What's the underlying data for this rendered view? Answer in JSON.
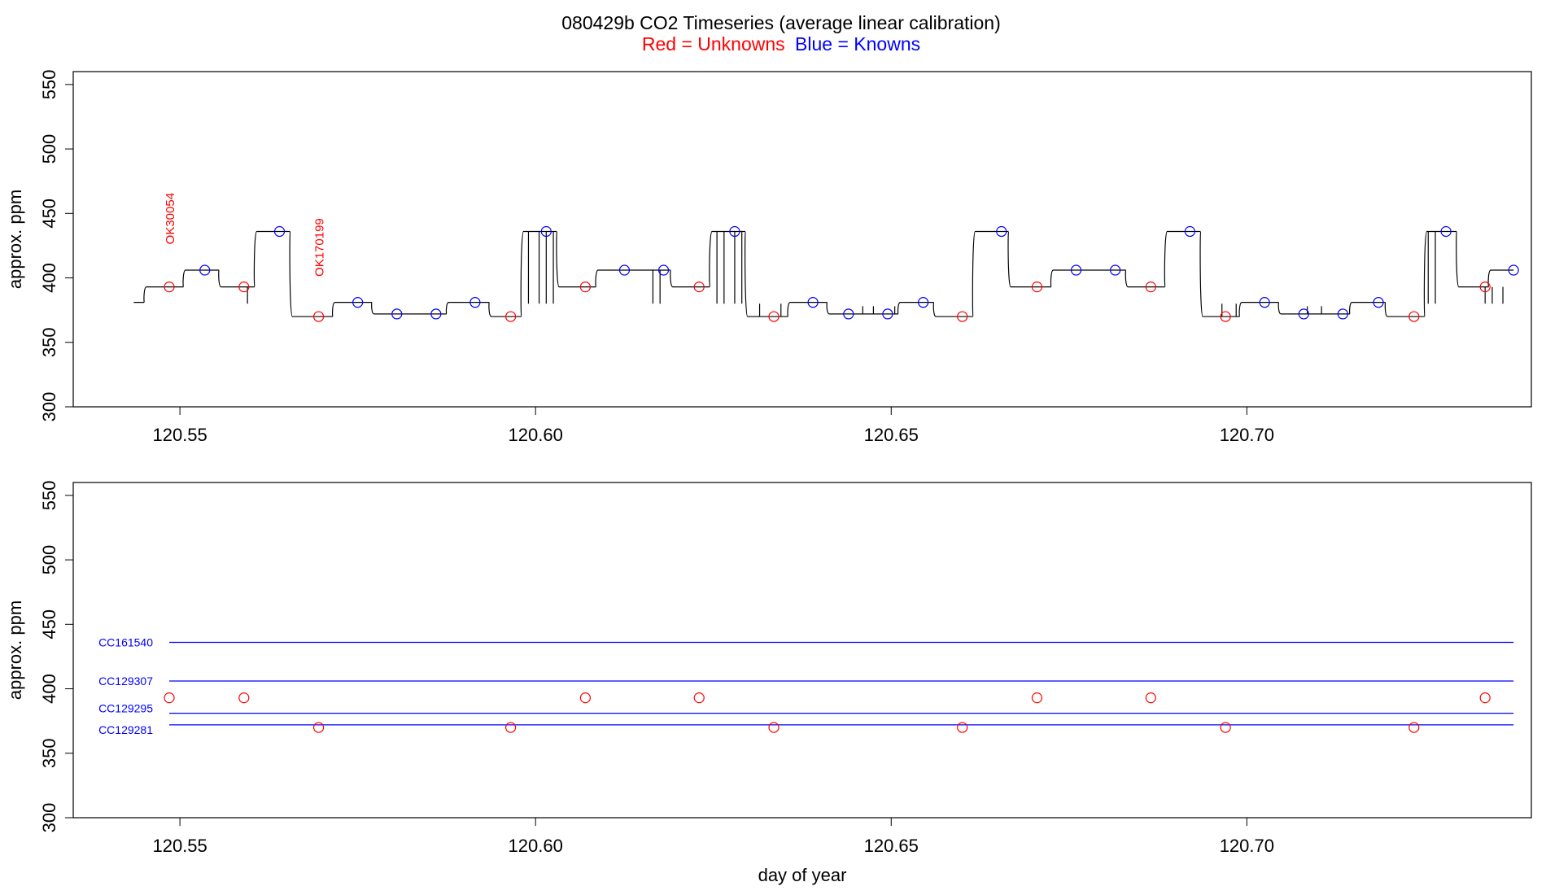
{
  "title": {
    "main": "080429b   CO2 Timeseries (average linear calibration)",
    "legend_red": "Red = Unknowns",
    "legend_blue": "Blue = Knowns"
  },
  "colors": {
    "unknown": "#ff0000",
    "known": "#0000ff",
    "trace": "#000000",
    "axis": "#000000"
  },
  "chart_data": [
    {
      "type": "line",
      "ylabel": "approx. ppm",
      "xlabel": "",
      "xlim": [
        120.535,
        120.74
      ],
      "ylim": [
        300,
        560
      ],
      "x_ticks": [
        "120.55",
        "120.60",
        "120.65",
        "120.70"
      ],
      "y_ticks": [
        "300",
        "350",
        "400",
        "450",
        "500",
        "550"
      ],
      "trace_levels": [
        {
          "x0": 120.5435,
          "x1": 120.545,
          "y": 381
        },
        {
          "x0": 120.545,
          "x1": 120.5505,
          "y": 393
        },
        {
          "x0": 120.5505,
          "x1": 120.5555,
          "y": 406
        },
        {
          "x0": 120.5555,
          "x1": 120.5605,
          "y": 393
        },
        {
          "x0": 120.5605,
          "x1": 120.5655,
          "y": 436
        },
        {
          "x0": 120.5655,
          "x1": 120.5715,
          "y": 370
        },
        {
          "x0": 120.5715,
          "x1": 120.577,
          "y": 381
        },
        {
          "x0": 120.577,
          "x1": 120.5875,
          "y": 372
        },
        {
          "x0": 120.5875,
          "x1": 120.5935,
          "y": 381
        },
        {
          "x0": 120.5935,
          "x1": 120.598,
          "y": 370
        },
        {
          "x0": 120.598,
          "x1": 120.603,
          "y": 436
        },
        {
          "x0": 120.603,
          "x1": 120.6085,
          "y": 393
        },
        {
          "x0": 120.6085,
          "x1": 120.619,
          "y": 406
        },
        {
          "x0": 120.619,
          "x1": 120.6245,
          "y": 393
        },
        {
          "x0": 120.6245,
          "x1": 120.6295,
          "y": 436
        },
        {
          "x0": 120.6295,
          "x1": 120.6355,
          "y": 370
        },
        {
          "x0": 120.6355,
          "x1": 120.641,
          "y": 381
        },
        {
          "x0": 120.641,
          "x1": 120.651,
          "y": 372
        },
        {
          "x0": 120.651,
          "x1": 120.656,
          "y": 381
        },
        {
          "x0": 120.656,
          "x1": 120.6615,
          "y": 370
        },
        {
          "x0": 120.6615,
          "x1": 120.6665,
          "y": 436
        },
        {
          "x0": 120.6665,
          "x1": 120.6725,
          "y": 393
        },
        {
          "x0": 120.6725,
          "x1": 120.683,
          "y": 406
        },
        {
          "x0": 120.683,
          "x1": 120.6885,
          "y": 393
        },
        {
          "x0": 120.6885,
          "x1": 120.6935,
          "y": 436
        },
        {
          "x0": 120.6935,
          "x1": 120.699,
          "y": 370
        },
        {
          "x0": 120.699,
          "x1": 120.7045,
          "y": 381
        },
        {
          "x0": 120.7045,
          "x1": 120.7145,
          "y": 372
        },
        {
          "x0": 120.7145,
          "x1": 120.7195,
          "y": 381
        },
        {
          "x0": 120.7195,
          "x1": 120.725,
          "y": 370
        },
        {
          "x0": 120.725,
          "x1": 120.7295,
          "y": 436
        },
        {
          "x0": 120.7295,
          "x1": 120.734,
          "y": 393
        },
        {
          "x0": 120.734,
          "x1": 120.7375,
          "y": 406
        }
      ],
      "trace_spikes": [
        {
          "x": 120.5595,
          "y_from": 393,
          "y_to": 380
        },
        {
          "x": 120.599,
          "y_from": 436,
          "y_to": 380
        },
        {
          "x": 120.6005,
          "y_from": 436,
          "y_to": 380
        },
        {
          "x": 120.6015,
          "y_from": 436,
          "y_to": 380
        },
        {
          "x": 120.6025,
          "y_from": 436,
          "y_to": 380
        },
        {
          "x": 120.6165,
          "y_from": 406,
          "y_to": 380
        },
        {
          "x": 120.6175,
          "y_from": 406,
          "y_to": 380
        },
        {
          "x": 120.6255,
          "y_from": 436,
          "y_to": 380
        },
        {
          "x": 120.6265,
          "y_from": 436,
          "y_to": 380
        },
        {
          "x": 120.628,
          "y_from": 436,
          "y_to": 380
        },
        {
          "x": 120.629,
          "y_from": 436,
          "y_to": 380
        },
        {
          "x": 120.6315,
          "y_from": 370,
          "y_to": 380
        },
        {
          "x": 120.6345,
          "y_from": 370,
          "y_to": 380
        },
        {
          "x": 120.646,
          "y_from": 372,
          "y_to": 378
        },
        {
          "x": 120.6475,
          "y_from": 372,
          "y_to": 378
        },
        {
          "x": 120.6505,
          "y_from": 372,
          "y_to": 378
        },
        {
          "x": 120.6965,
          "y_from": 370,
          "y_to": 380
        },
        {
          "x": 120.6985,
          "y_from": 370,
          "y_to": 380
        },
        {
          "x": 120.7085,
          "y_from": 372,
          "y_to": 378
        },
        {
          "x": 120.7105,
          "y_from": 372,
          "y_to": 378
        },
        {
          "x": 120.7255,
          "y_from": 436,
          "y_to": 380
        },
        {
          "x": 120.7265,
          "y_from": 436,
          "y_to": 380
        },
        {
          "x": 120.7335,
          "y_from": 393,
          "y_to": 380
        },
        {
          "x": 120.7345,
          "y_from": 393,
          "y_to": 380
        },
        {
          "x": 120.736,
          "y_from": 393,
          "y_to": 380
        }
      ],
      "series": [
        {
          "name": "Unknowns",
          "color": "#ff0000",
          "points": [
            {
              "x": 120.5485,
              "y": 393
            },
            {
              "x": 120.559,
              "y": 393
            },
            {
              "x": 120.5695,
              "y": 370
            },
            {
              "x": 120.5965,
              "y": 370
            },
            {
              "x": 120.607,
              "y": 393
            },
            {
              "x": 120.623,
              "y": 393
            },
            {
              "x": 120.6335,
              "y": 370
            },
            {
              "x": 120.66,
              "y": 370
            },
            {
              "x": 120.6705,
              "y": 393
            },
            {
              "x": 120.6865,
              "y": 393
            },
            {
              "x": 120.697,
              "y": 370
            },
            {
              "x": 120.7235,
              "y": 370
            },
            {
              "x": 120.7335,
              "y": 393
            }
          ]
        },
        {
          "name": "Knowns",
          "color": "#0000ff",
          "points": [
            {
              "x": 120.5535,
              "y": 406
            },
            {
              "x": 120.564,
              "y": 436
            },
            {
              "x": 120.575,
              "y": 381
            },
            {
              "x": 120.5805,
              "y": 372
            },
            {
              "x": 120.586,
              "y": 372
            },
            {
              "x": 120.5915,
              "y": 381
            },
            {
              "x": 120.6015,
              "y": 436
            },
            {
              "x": 120.6125,
              "y": 406
            },
            {
              "x": 120.618,
              "y": 406
            },
            {
              "x": 120.628,
              "y": 436
            },
            {
              "x": 120.639,
              "y": 381
            },
            {
              "x": 120.644,
              "y": 372
            },
            {
              "x": 120.6495,
              "y": 372
            },
            {
              "x": 120.6545,
              "y": 381
            },
            {
              "x": 120.6655,
              "y": 436
            },
            {
              "x": 120.676,
              "y": 406
            },
            {
              "x": 120.6815,
              "y": 406
            },
            {
              "x": 120.692,
              "y": 436
            },
            {
              "x": 120.7025,
              "y": 381
            },
            {
              "x": 120.708,
              "y": 372
            },
            {
              "x": 120.7135,
              "y": 372
            },
            {
              "x": 120.7185,
              "y": 381
            },
            {
              "x": 120.728,
              "y": 436
            },
            {
              "x": 120.7375,
              "y": 406
            }
          ]
        }
      ],
      "annotations": [
        {
          "text": "OK30054",
          "x": 120.5485,
          "y": 426
        },
        {
          "text": "OK170199",
          "x": 120.5695,
          "y": 401
        }
      ]
    },
    {
      "type": "scatter",
      "ylabel": "approx. ppm",
      "xlabel": "day of year",
      "xlim": [
        120.535,
        120.74
      ],
      "ylim": [
        300,
        560
      ],
      "x_ticks": [
        "120.55",
        "120.60",
        "120.65",
        "120.70"
      ],
      "y_ticks": [
        "300",
        "350",
        "400",
        "450",
        "500",
        "550"
      ],
      "reference_lines": [
        {
          "label": "CC161540",
          "y": 436,
          "color": "#0000ff"
        },
        {
          "label": "CC129307",
          "y": 406,
          "color": "#0000ff"
        },
        {
          "label": "CC129295",
          "y": 381,
          "color": "#0000ff"
        },
        {
          "label": "CC129281",
          "y": 372,
          "color": "#0000ff"
        }
      ],
      "reference_x_range": [
        120.5485,
        120.7375
      ],
      "series": [
        {
          "name": "Unknowns",
          "color": "#ff0000",
          "points": [
            {
              "x": 120.5485,
              "y": 393
            },
            {
              "x": 120.559,
              "y": 393
            },
            {
              "x": 120.5695,
              "y": 370
            },
            {
              "x": 120.5965,
              "y": 370
            },
            {
              "x": 120.607,
              "y": 393
            },
            {
              "x": 120.623,
              "y": 393
            },
            {
              "x": 120.6335,
              "y": 370
            },
            {
              "x": 120.66,
              "y": 370
            },
            {
              "x": 120.6705,
              "y": 393
            },
            {
              "x": 120.6865,
              "y": 393
            },
            {
              "x": 120.697,
              "y": 370
            },
            {
              "x": 120.7235,
              "y": 370
            },
            {
              "x": 120.7335,
              "y": 393
            }
          ]
        }
      ]
    }
  ]
}
